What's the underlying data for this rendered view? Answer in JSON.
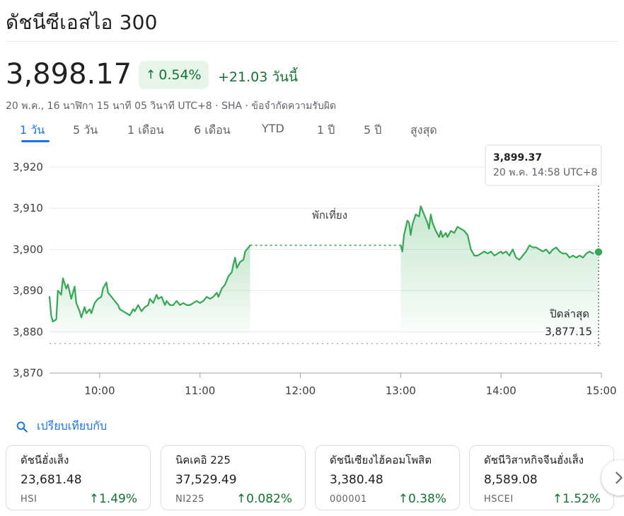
{
  "header": {
    "title": "ดัชนีซีเอสไอ 300",
    "price": "3,898.17",
    "change_percent": "0.54%",
    "change_abs": "+21.03 วันนี้",
    "meta": "20 พ.ค., 16 นาฬิกา 15 นาที 05 วินาที UTC+8 · SHA · ข้อจำกัดความรับผิด"
  },
  "tabs": [
    "1 วัน",
    "5 วัน",
    "1 เดือน",
    "6 เดือน",
    "YTD",
    "1 ปี",
    "5 ปี",
    "สูงสุด"
  ],
  "active_tab": 0,
  "tooltip": {
    "value": "3,899.37",
    "time": "20 พ.ค. 14:58 UTC+8"
  },
  "colors": {
    "up": "#137333",
    "line": "#34a853",
    "accent": "#1a73e8"
  },
  "chart_data": {
    "type": "line",
    "x_unit": "time of day (UTC+8)",
    "xlim": [
      "09:30",
      "15:00"
    ],
    "ylim": [
      3870,
      3920
    ],
    "y_ticks": [
      "3,920",
      "3,910",
      "3,900",
      "3,890",
      "3,880",
      "3,870"
    ],
    "y_tick_values": [
      3920,
      3910,
      3900,
      3890,
      3880,
      3870
    ],
    "x_ticks": [
      "10:00",
      "11:00",
      "12:00",
      "13:00",
      "14:00",
      "15:00"
    ],
    "x_tick_values": [
      "10:00",
      "11:00",
      "12:00",
      "13:00",
      "14:00",
      "15:00"
    ],
    "grid": true,
    "lunch_break": {
      "label": "พักเที่ยง",
      "start": "11:30",
      "end": "13:00"
    },
    "previous_close": {
      "label": "ปิดล่าสุด",
      "value_label": "3,877.15",
      "value": 3877.15
    },
    "series": [
      {
        "segments": [
          [
            [
              "09:30",
              3888.5
            ],
            [
              "09:31",
              3884.0
            ],
            [
              "09:32",
              3882.5
            ],
            [
              "09:34",
              3883.0
            ],
            [
              "09:35",
              3890.0
            ],
            [
              "09:37",
              3889.0
            ],
            [
              "09:38",
              3893.0
            ],
            [
              "09:40",
              3890.5
            ],
            [
              "09:41",
              3891.5
            ],
            [
              "09:43",
              3888.0
            ],
            [
              "09:45",
              3891.0
            ],
            [
              "09:46",
              3887.0
            ],
            [
              "09:48",
              3885.0
            ],
            [
              "09:49",
              3883.5
            ],
            [
              "09:51",
              3886.0
            ],
            [
              "09:52",
              3884.5
            ],
            [
              "09:54",
              3885.5
            ],
            [
              "09:55",
              3884.5
            ],
            [
              "09:57",
              3887.0
            ],
            [
              "09:59",
              3888.0
            ],
            [
              "10:01",
              3888.5
            ],
            [
              "10:02",
              3890.5
            ],
            [
              "10:04",
              3892.0
            ],
            [
              "10:05",
              3889.5
            ],
            [
              "10:07",
              3888.5
            ],
            [
              "10:09",
              3887.5
            ],
            [
              "10:11",
              3886.5
            ],
            [
              "10:12",
              3885.5
            ],
            [
              "10:14",
              3885.0
            ],
            [
              "10:16",
              3884.5
            ],
            [
              "10:18",
              3884.0
            ],
            [
              "10:20",
              3885.5
            ],
            [
              "10:21",
              3885.0
            ],
            [
              "10:23",
              3886.5
            ],
            [
              "10:25",
              3885.0
            ],
            [
              "10:27",
              3886.0
            ],
            [
              "10:29",
              3886.5
            ],
            [
              "10:30",
              3888.0
            ],
            [
              "10:32",
              3887.0
            ],
            [
              "10:34",
              3889.0
            ],
            [
              "10:35",
              3888.0
            ],
            [
              "10:37",
              3888.5
            ],
            [
              "10:39",
              3886.5
            ],
            [
              "10:40",
              3887.5
            ],
            [
              "10:42",
              3886.5
            ],
            [
              "10:44",
              3886.5
            ],
            [
              "10:46",
              3887.5
            ],
            [
              "10:48",
              3886.5
            ],
            [
              "10:50",
              3887.0
            ],
            [
              "10:52",
              3886.5
            ],
            [
              "10:54",
              3886.5
            ],
            [
              "10:56",
              3887.0
            ],
            [
              "10:58",
              3887.5
            ],
            [
              "11:00",
              3887.0
            ],
            [
              "11:02",
              3887.5
            ],
            [
              "11:04",
              3888.5
            ],
            [
              "11:06",
              3888.0
            ],
            [
              "11:08",
              3888.5
            ],
            [
              "11:10",
              3889.5
            ],
            [
              "11:11",
              3888.5
            ],
            [
              "11:13",
              3890.5
            ],
            [
              "11:15",
              3891.5
            ],
            [
              "11:17",
              3893.5
            ],
            [
              "11:19",
              3894.5
            ],
            [
              "11:20",
              3896.5
            ],
            [
              "11:21",
              3898.0
            ],
            [
              "11:22",
              3895.5
            ],
            [
              "11:24",
              3897.0
            ],
            [
              "11:26",
              3897.5
            ],
            [
              "11:27",
              3899.5
            ],
            [
              "11:28",
              3900.0
            ],
            [
              "11:29",
              3900.5
            ],
            [
              "11:30",
              3901.0
            ]
          ],
          [
            [
              "13:00",
              3901.0
            ],
            [
              "13:01",
              3899.5
            ],
            [
              "13:02",
              3903.5
            ],
            [
              "13:04",
              3907.0
            ],
            [
              "13:05",
              3906.5
            ],
            [
              "13:06",
              3903.5
            ],
            [
              "13:07",
              3906.0
            ],
            [
              "13:09",
              3908.5
            ],
            [
              "13:11",
              3908.0
            ],
            [
              "13:12",
              3910.5
            ],
            [
              "13:13",
              3909.5
            ],
            [
              "13:15",
              3907.5
            ],
            [
              "13:16",
              3906.5
            ],
            [
              "13:17",
              3905.0
            ],
            [
              "13:18",
              3908.5
            ],
            [
              "13:19",
              3906.5
            ],
            [
              "13:21",
              3904.5
            ],
            [
              "13:23",
              3903.0
            ],
            [
              "13:24",
              3904.5
            ],
            [
              "13:25",
              3903.0
            ],
            [
              "13:27",
              3904.0
            ],
            [
              "13:28",
              3903.0
            ],
            [
              "13:30",
              3904.5
            ],
            [
              "13:32",
              3904.0
            ],
            [
              "13:34",
              3905.5
            ],
            [
              "13:36",
              3905.0
            ],
            [
              "13:38",
              3904.5
            ],
            [
              "13:40",
              3903.5
            ],
            [
              "13:42",
              3900.0
            ],
            [
              "13:44",
              3898.5
            ],
            [
              "13:46",
              3898.5
            ],
            [
              "13:48",
              3899.0
            ],
            [
              "13:50",
              3899.5
            ],
            [
              "13:52",
              3899.0
            ],
            [
              "13:54",
              3899.5
            ],
            [
              "13:56",
              3898.5
            ],
            [
              "13:58",
              3899.0
            ],
            [
              "14:00",
              3899.5
            ],
            [
              "14:01",
              3899.0
            ],
            [
              "14:03",
              3899.5
            ],
            [
              "14:05",
              3898.5
            ],
            [
              "14:07",
              3900.0
            ],
            [
              "14:09",
              3898.0
            ],
            [
              "14:11",
              3897.5
            ],
            [
              "14:13",
              3898.5
            ],
            [
              "14:15",
              3899.5
            ],
            [
              "14:17",
              3901.0
            ],
            [
              "14:19",
              3900.5
            ],
            [
              "14:21",
              3900.5
            ],
            [
              "14:23",
              3900.0
            ],
            [
              "14:25",
              3899.5
            ],
            [
              "14:27",
              3900.0
            ],
            [
              "14:29",
              3899.0
            ],
            [
              "14:31",
              3900.0
            ],
            [
              "14:33",
              3900.5
            ],
            [
              "14:35",
              3899.5
            ],
            [
              "14:37",
              3899.0
            ],
            [
              "14:39",
              3899.0
            ],
            [
              "14:41",
              3898.0
            ],
            [
              "14:43",
              3898.5
            ],
            [
              "14:45",
              3898.0
            ],
            [
              "14:47",
              3898.5
            ],
            [
              "14:49",
              3898.0
            ],
            [
              "14:51",
              3899.0
            ],
            [
              "14:53",
              3899.5
            ],
            [
              "14:55",
              3899.0
            ],
            [
              "14:57",
              3899.5
            ],
            [
              "14:58",
              3899.37
            ]
          ]
        ]
      }
    ],
    "tooltip_point": [
      "14:58",
      3899.37
    ]
  },
  "compare_label": "เปรียบเทียบกับ",
  "related": [
    {
      "name": "ดัชนีฮั่งเส็ง",
      "value": "23,681.48",
      "ticker": "HSI",
      "change": "1.49%"
    },
    {
      "name": "นิคเคอิ 225",
      "value": "37,529.49",
      "ticker": "NI225",
      "change": "0.082%"
    },
    {
      "name": "ดัชนีเซียงไฮ้คอมโพสิต",
      "value": "3,380.48",
      "ticker": "000001",
      "change": "0.38%"
    },
    {
      "name": "ดัชนีวิสาหกิจจีนฮั่งเส็ง",
      "value": "8,589.08",
      "ticker": "HSCEI",
      "change": "1.52%"
    }
  ],
  "icons": {
    "compare": "search-icon",
    "up_arrow": "arrow-up-icon",
    "next": "chevron-right-icon"
  }
}
